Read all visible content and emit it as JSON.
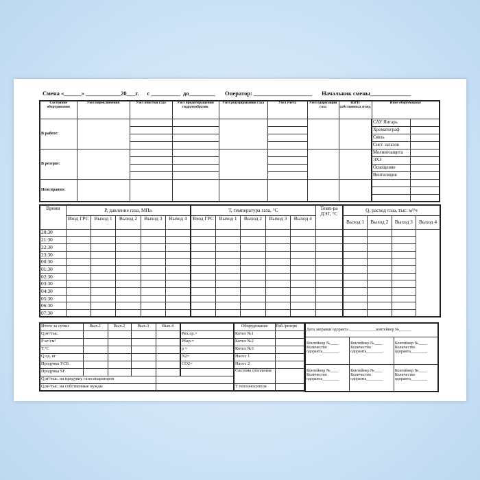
{
  "header": {
    "shift": "Смена «______» ____________20___г.",
    "from": "с __________",
    "to": "до_________",
    "operator": "Оператор: ____________________",
    "chief": "Начальник смены______________"
  },
  "equipment_table": {
    "columns": [
      "Состояние оборудования",
      "Узел переключения",
      "Узел очистки газа",
      "Узел предотвращения гидратообразов.",
      "Узел редуцирования газа",
      "Узел учета",
      "Узел одоризации газа",
      "ШРП собственных нужд",
      "Иное оборудование"
    ],
    "states": [
      "В работе:",
      "В резерве:",
      "Неисправно:"
    ],
    "other_equipment": [
      "САУ Янтарь",
      "Хроматограф",
      "Связь",
      "Сист. загазов",
      "Молниезащита",
      "ЭХЗ",
      "Освещение",
      "Вентиляция",
      "",
      "",
      ""
    ]
  },
  "params_table": {
    "time_label": "Время",
    "pressure_label": "Р, давление газа, МПа",
    "temperature_label": "Т, температура газа, °С",
    "deg_label": "Темп-ра ДЭГ, °С",
    "flow_label": "Q, расход газа, тыс. м³/ч",
    "pt_subcols": [
      "Вход ГРС",
      "Выход 1",
      "Выход 2",
      "Выход 3",
      "Выход 4"
    ],
    "q_subcols": [
      "Выход 1",
      "Выход 2",
      "Выход 3",
      "Выход 4"
    ],
    "times": [
      "20:30",
      "21:30",
      "22:30",
      "23:30",
      "00:30",
      "01:30",
      "02:30",
      "03:30",
      "04:30",
      "05:30",
      "06:30",
      "07:30"
    ]
  },
  "totals_table": {
    "header": [
      "Итого за сутки",
      "Вых.1",
      "Вых.2",
      "Вых.3",
      "Вых.4"
    ],
    "rows": [
      "Q,м³/тыс.",
      "Р кг/см²",
      "Т,°С",
      "Q од. кг",
      "Продувка УСБ",
      "Продувка SF"
    ],
    "gas_params": [
      "Рвх.ср.=",
      "Рбар.=",
      "ρ =",
      "N2=",
      "CO2="
    ],
    "long_rows": [
      "Q,м³/тыс. на продувку газосепараторов",
      "Q,м³/тыс. на собственные нужды"
    ],
    "equipment_header": "Оборудование",
    "status_header": "Раб./резерв",
    "equipment": [
      "Котел №1",
      "Котел №2",
      "Котел №3",
      "Насос 1",
      "Насос 2",
      "Система отопления",
      "Т теплоносителя"
    ]
  },
  "odorant_table": {
    "refill": "Дата заправки одоранта _____________контейнер №______",
    "container": "Контейнер №____",
    "quantity": "Количество",
    "odorant": "одоранта________"
  }
}
